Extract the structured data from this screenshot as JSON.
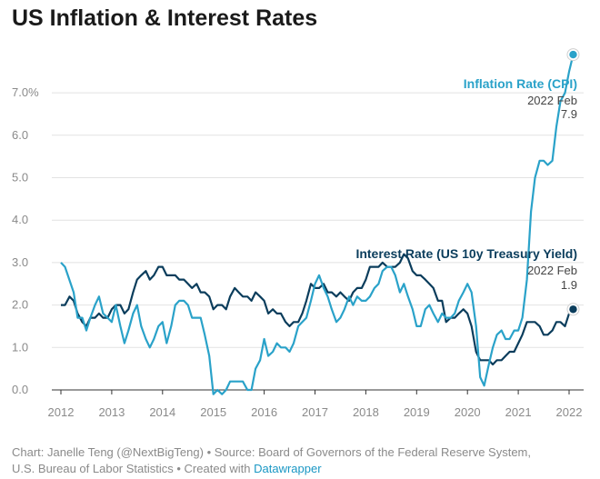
{
  "colors": {
    "inflation": "#2aa2c9",
    "interest": "#0b3d5c",
    "grid": "#e2e2e2",
    "axis": "#333333",
    "tick_text": "#8a8a8a",
    "link": "#1a97c4"
  },
  "footer": {
    "line1": "Chart: Janelle Teng (@NextBigTeng) • Source: Board of Governors of the Federal Reserve System,",
    "line2_prefix": "U.S. Bureau of Labor Statistics • Created with ",
    "link_text": "Datawrapper"
  },
  "chart_data": {
    "type": "line",
    "title": "US Inflation & Interest Rates",
    "xlabel": "",
    "ylabel": "",
    "xlim": [
      2012,
      2022.25
    ],
    "ylim": [
      0,
      7.9
    ],
    "grid": true,
    "x_ticks": [
      "2012",
      "2013",
      "2014",
      "2015",
      "2016",
      "2017",
      "2018",
      "2019",
      "2020",
      "2021",
      "2022"
    ],
    "y_ticks": [
      {
        "value": 0,
        "label": "0.0"
      },
      {
        "value": 1,
        "label": "1.0"
      },
      {
        "value": 2,
        "label": "2.0"
      },
      {
        "value": 3,
        "label": "3.0"
      },
      {
        "value": 4,
        "label": "4.0"
      },
      {
        "value": 5,
        "label": "5.0"
      },
      {
        "value": 6,
        "label": "6.0"
      },
      {
        "value": 7,
        "label": "7.0%"
      }
    ],
    "series": [
      {
        "name": "Inflation Rate (CPI)",
        "color": "#2aa2c9",
        "label_date": "2022 Feb",
        "label_value": "7.9",
        "points": [
          [
            2012.0,
            3.0
          ],
          [
            2012.08,
            2.9
          ],
          [
            2012.25,
            2.3
          ],
          [
            2012.33,
            1.7
          ],
          [
            2012.42,
            1.7
          ],
          [
            2012.5,
            1.4
          ],
          [
            2012.58,
            1.7
          ],
          [
            2012.67,
            2.0
          ],
          [
            2012.75,
            2.2
          ],
          [
            2012.83,
            1.8
          ],
          [
            2012.92,
            1.7
          ],
          [
            2013.0,
            1.6
          ],
          [
            2013.08,
            2.0
          ],
          [
            2013.17,
            1.5
          ],
          [
            2013.25,
            1.1
          ],
          [
            2013.33,
            1.4
          ],
          [
            2013.42,
            1.8
          ],
          [
            2013.5,
            2.0
          ],
          [
            2013.58,
            1.5
          ],
          [
            2013.67,
            1.2
          ],
          [
            2013.75,
            1.0
          ],
          [
            2013.83,
            1.2
          ],
          [
            2013.92,
            1.5
          ],
          [
            2014.0,
            1.6
          ],
          [
            2014.08,
            1.1
          ],
          [
            2014.17,
            1.5
          ],
          [
            2014.25,
            2.0
          ],
          [
            2014.33,
            2.1
          ],
          [
            2014.42,
            2.1
          ],
          [
            2014.5,
            2.0
          ],
          [
            2014.58,
            1.7
          ],
          [
            2014.67,
            1.7
          ],
          [
            2014.75,
            1.7
          ],
          [
            2014.83,
            1.3
          ],
          [
            2014.92,
            0.8
          ],
          [
            2015.0,
            -0.1
          ],
          [
            2015.08,
            0.0
          ],
          [
            2015.17,
            -0.1
          ],
          [
            2015.25,
            0.0
          ],
          [
            2015.33,
            0.2
          ],
          [
            2015.42,
            0.2
          ],
          [
            2015.5,
            0.2
          ],
          [
            2015.58,
            0.2
          ],
          [
            2015.67,
            0.0
          ],
          [
            2015.75,
            0.0
          ],
          [
            2015.83,
            0.5
          ],
          [
            2015.92,
            0.7
          ],
          [
            2016.0,
            1.2
          ],
          [
            2016.08,
            0.8
          ],
          [
            2016.17,
            0.9
          ],
          [
            2016.25,
            1.1
          ],
          [
            2016.33,
            1.0
          ],
          [
            2016.42,
            1.0
          ],
          [
            2016.5,
            0.9
          ],
          [
            2016.58,
            1.1
          ],
          [
            2016.67,
            1.5
          ],
          [
            2016.75,
            1.6
          ],
          [
            2016.83,
            1.7
          ],
          [
            2016.92,
            2.1
          ],
          [
            2017.0,
            2.5
          ],
          [
            2017.08,
            2.7
          ],
          [
            2017.17,
            2.4
          ],
          [
            2017.25,
            2.2
          ],
          [
            2017.33,
            1.9
          ],
          [
            2017.42,
            1.6
          ],
          [
            2017.5,
            1.7
          ],
          [
            2017.58,
            1.9
          ],
          [
            2017.67,
            2.2
          ],
          [
            2017.75,
            2.0
          ],
          [
            2017.83,
            2.2
          ],
          [
            2017.92,
            2.1
          ],
          [
            2018.0,
            2.1
          ],
          [
            2018.08,
            2.2
          ],
          [
            2018.17,
            2.4
          ],
          [
            2018.25,
            2.5
          ],
          [
            2018.33,
            2.8
          ],
          [
            2018.42,
            2.9
          ],
          [
            2018.5,
            2.9
          ],
          [
            2018.58,
            2.7
          ],
          [
            2018.67,
            2.3
          ],
          [
            2018.75,
            2.5
          ],
          [
            2018.83,
            2.2
          ],
          [
            2018.92,
            1.9
          ],
          [
            2019.0,
            1.5
          ],
          [
            2019.08,
            1.5
          ],
          [
            2019.17,
            1.9
          ],
          [
            2019.25,
            2.0
          ],
          [
            2019.33,
            1.8
          ],
          [
            2019.42,
            1.6
          ],
          [
            2019.5,
            1.8
          ],
          [
            2019.58,
            1.7
          ],
          [
            2019.67,
            1.7
          ],
          [
            2019.75,
            1.8
          ],
          [
            2019.83,
            2.1
          ],
          [
            2019.92,
            2.3
          ],
          [
            2020.0,
            2.5
          ],
          [
            2020.08,
            2.3
          ],
          [
            2020.17,
            1.5
          ],
          [
            2020.25,
            0.3
          ],
          [
            2020.33,
            0.1
          ],
          [
            2020.42,
            0.6
          ],
          [
            2020.5,
            1.0
          ],
          [
            2020.58,
            1.3
          ],
          [
            2020.67,
            1.4
          ],
          [
            2020.75,
            1.2
          ],
          [
            2020.83,
            1.2
          ],
          [
            2020.92,
            1.4
          ],
          [
            2021.0,
            1.4
          ],
          [
            2021.08,
            1.7
          ],
          [
            2021.17,
            2.6
          ],
          [
            2021.25,
            4.2
          ],
          [
            2021.33,
            5.0
          ],
          [
            2021.42,
            5.4
          ],
          [
            2021.5,
            5.4
          ],
          [
            2021.58,
            5.3
          ],
          [
            2021.67,
            5.4
          ],
          [
            2021.75,
            6.2
          ],
          [
            2021.83,
            6.8
          ],
          [
            2021.92,
            7.0
          ],
          [
            2022.0,
            7.5
          ],
          [
            2022.08,
            7.9
          ]
        ]
      },
      {
        "name": "Interest Rate (US 10y Treasury Yield)",
        "color": "#0b3d5c",
        "label_date": "2022 Feb",
        "label_value": "1.9",
        "points": [
          [
            2012.0,
            2.0
          ],
          [
            2012.08,
            2.0
          ],
          [
            2012.17,
            2.2
          ],
          [
            2012.25,
            2.1
          ],
          [
            2012.33,
            1.8
          ],
          [
            2012.42,
            1.6
          ],
          [
            2012.5,
            1.5
          ],
          [
            2012.58,
            1.7
          ],
          [
            2012.67,
            1.7
          ],
          [
            2012.75,
            1.8
          ],
          [
            2012.83,
            1.7
          ],
          [
            2012.92,
            1.7
          ],
          [
            2013.0,
            1.9
          ],
          [
            2013.08,
            2.0
          ],
          [
            2013.17,
            2.0
          ],
          [
            2013.25,
            1.8
          ],
          [
            2013.33,
            1.9
          ],
          [
            2013.42,
            2.3
          ],
          [
            2013.5,
            2.6
          ],
          [
            2013.58,
            2.7
          ],
          [
            2013.67,
            2.8
          ],
          [
            2013.75,
            2.6
          ],
          [
            2013.83,
            2.7
          ],
          [
            2013.92,
            2.9
          ],
          [
            2014.0,
            2.9
          ],
          [
            2014.08,
            2.7
          ],
          [
            2014.17,
            2.7
          ],
          [
            2014.25,
            2.7
          ],
          [
            2014.33,
            2.6
          ],
          [
            2014.42,
            2.6
          ],
          [
            2014.5,
            2.5
          ],
          [
            2014.58,
            2.4
          ],
          [
            2014.67,
            2.5
          ],
          [
            2014.75,
            2.3
          ],
          [
            2014.83,
            2.3
          ],
          [
            2014.92,
            2.2
          ],
          [
            2015.0,
            1.9
          ],
          [
            2015.08,
            2.0
          ],
          [
            2015.17,
            2.0
          ],
          [
            2015.25,
            1.9
          ],
          [
            2015.33,
            2.2
          ],
          [
            2015.42,
            2.4
          ],
          [
            2015.5,
            2.3
          ],
          [
            2015.58,
            2.2
          ],
          [
            2015.67,
            2.2
          ],
          [
            2015.75,
            2.1
          ],
          [
            2015.83,
            2.3
          ],
          [
            2015.92,
            2.2
          ],
          [
            2016.0,
            2.1
          ],
          [
            2016.08,
            1.8
          ],
          [
            2016.17,
            1.9
          ],
          [
            2016.25,
            1.8
          ],
          [
            2016.33,
            1.8
          ],
          [
            2016.42,
            1.6
          ],
          [
            2016.5,
            1.5
          ],
          [
            2016.58,
            1.6
          ],
          [
            2016.67,
            1.6
          ],
          [
            2016.75,
            1.8
          ],
          [
            2016.83,
            2.1
          ],
          [
            2016.92,
            2.5
          ],
          [
            2017.0,
            2.4
          ],
          [
            2017.08,
            2.4
          ],
          [
            2017.17,
            2.5
          ],
          [
            2017.25,
            2.3
          ],
          [
            2017.33,
            2.3
          ],
          [
            2017.42,
            2.2
          ],
          [
            2017.5,
            2.3
          ],
          [
            2017.58,
            2.2
          ],
          [
            2017.67,
            2.1
          ],
          [
            2017.75,
            2.3
          ],
          [
            2017.83,
            2.4
          ],
          [
            2017.92,
            2.4
          ],
          [
            2018.0,
            2.6
          ],
          [
            2018.08,
            2.9
          ],
          [
            2018.17,
            2.9
          ],
          [
            2018.25,
            2.9
          ],
          [
            2018.33,
            3.0
          ],
          [
            2018.42,
            2.9
          ],
          [
            2018.5,
            2.9
          ],
          [
            2018.58,
            2.9
          ],
          [
            2018.67,
            3.0
          ],
          [
            2018.75,
            3.2
          ],
          [
            2018.83,
            3.1
          ],
          [
            2018.92,
            2.8
          ],
          [
            2019.0,
            2.7
          ],
          [
            2019.08,
            2.7
          ],
          [
            2019.17,
            2.6
          ],
          [
            2019.25,
            2.5
          ],
          [
            2019.33,
            2.4
          ],
          [
            2019.42,
            2.1
          ],
          [
            2019.5,
            2.1
          ],
          [
            2019.58,
            1.6
          ],
          [
            2019.67,
            1.7
          ],
          [
            2019.75,
            1.7
          ],
          [
            2019.83,
            1.8
          ],
          [
            2019.92,
            1.9
          ],
          [
            2020.0,
            1.8
          ],
          [
            2020.08,
            1.5
          ],
          [
            2020.17,
            0.9
          ],
          [
            2020.25,
            0.7
          ],
          [
            2020.33,
            0.7
          ],
          [
            2020.42,
            0.7
          ],
          [
            2020.5,
            0.6
          ],
          [
            2020.58,
            0.7
          ],
          [
            2020.67,
            0.7
          ],
          [
            2020.75,
            0.8
          ],
          [
            2020.83,
            0.9
          ],
          [
            2020.92,
            0.9
          ],
          [
            2021.0,
            1.1
          ],
          [
            2021.08,
            1.3
          ],
          [
            2021.17,
            1.6
          ],
          [
            2021.25,
            1.6
          ],
          [
            2021.33,
            1.6
          ],
          [
            2021.42,
            1.5
          ],
          [
            2021.5,
            1.3
          ],
          [
            2021.58,
            1.3
          ],
          [
            2021.67,
            1.4
          ],
          [
            2021.75,
            1.6
          ],
          [
            2021.83,
            1.6
          ],
          [
            2021.92,
            1.5
          ],
          [
            2022.0,
            1.8
          ],
          [
            2022.08,
            1.9
          ]
        ]
      }
    ]
  }
}
